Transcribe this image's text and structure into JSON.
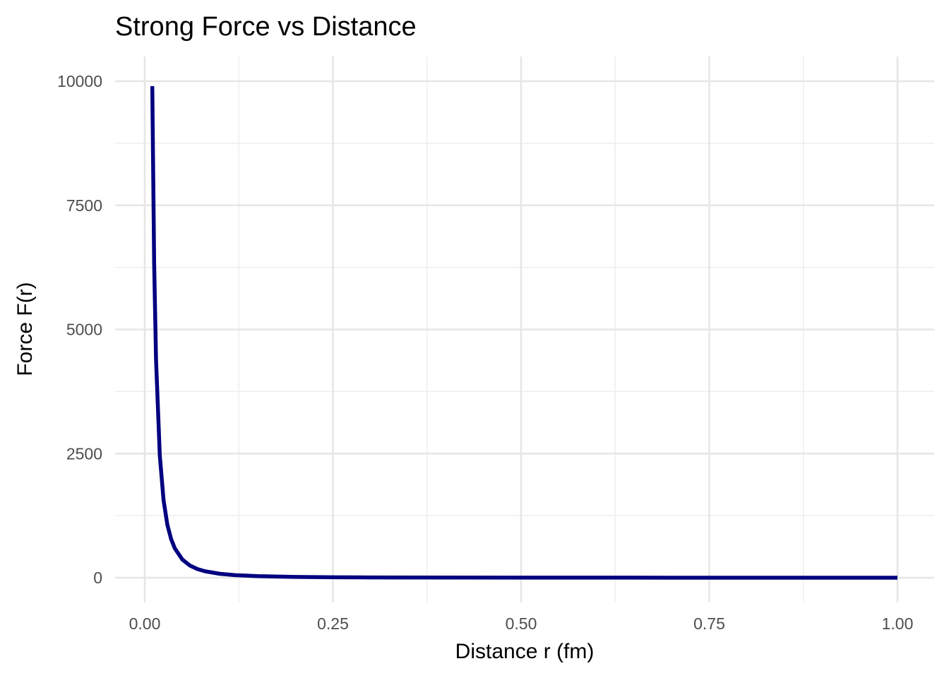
{
  "chart_data": {
    "type": "line",
    "title": "Strong Force vs Distance",
    "xlabel": "Distance r (fm)",
    "ylabel": "Force F(r)",
    "xlim": [
      0,
      1
    ],
    "ylim": [
      0,
      10000
    ],
    "x_ticks": [
      0,
      0.25,
      0.5,
      0.75,
      1
    ],
    "x_tick_labels": [
      "0.00",
      "0.25",
      "0.50",
      "0.75",
      "1.00"
    ],
    "y_ticks": [
      0,
      2500,
      5000,
      7500,
      10000
    ],
    "y_tick_labels": [
      "0",
      "2500",
      "5000",
      "7500",
      "10000"
    ],
    "grid": true,
    "legend": "none",
    "series": [
      {
        "color": "#000080",
        "x": [
          0.01,
          0.0125,
          0.015,
          0.02,
          0.025,
          0.03,
          0.035,
          0.04,
          0.05,
          0.06,
          0.07,
          0.08,
          0.1,
          0.12,
          0.15,
          0.2,
          0.25,
          0.3,
          0.4,
          0.5,
          0.6,
          0.7,
          0.8,
          0.9,
          1.0
        ],
        "y": [
          9900,
          6330,
          4390,
          2460,
          1560,
          1070,
          780,
          590,
          365,
          245,
          175,
          130,
          78,
          52,
          32,
          16,
          9.4,
          6.1,
          3.1,
          1.8,
          1.2,
          0.82,
          0.58,
          0.43,
          0.33
        ]
      }
    ]
  }
}
